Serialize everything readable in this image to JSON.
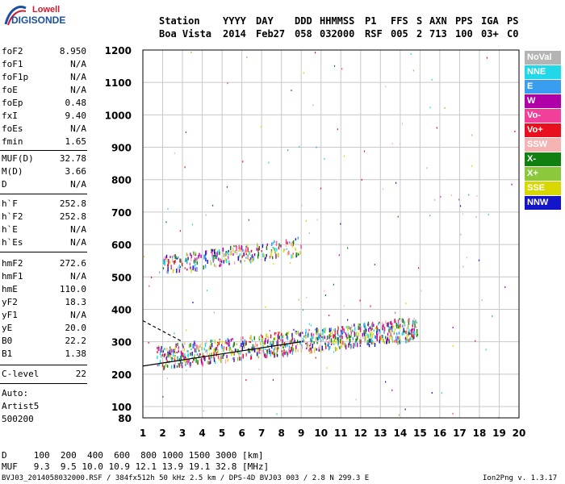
{
  "logo": {
    "line1": "Lowell",
    "line2": "DIGISONDE"
  },
  "header": {
    "labels": [
      "Station",
      "YYYY",
      "DAY",
      "DDD",
      "HHMMSS",
      "P1",
      "FFS",
      "S",
      "AXN",
      "PPS",
      "IGA",
      "PS"
    ],
    "values": [
      "Boa Vista",
      "2014",
      "Feb27",
      "058",
      "032000",
      "RSF",
      "005",
      "2",
      "713",
      "100",
      "03+",
      "C0"
    ]
  },
  "params": {
    "group1": [
      {
        "name": "foF2",
        "value": "8.950"
      },
      {
        "name": "foF1",
        "value": "N/A"
      },
      {
        "name": "foF1p",
        "value": "N/A"
      },
      {
        "name": "foE",
        "value": "N/A"
      },
      {
        "name": "foEp",
        "value": "0.48"
      },
      {
        "name": "fxI",
        "value": "9.40"
      },
      {
        "name": "foEs",
        "value": "N/A"
      },
      {
        "name": "fmin",
        "value": "1.65"
      }
    ],
    "group2": [
      {
        "name": "MUF(D)",
        "value": "32.78"
      },
      {
        "name": "M(D)",
        "value": "3.66"
      },
      {
        "name": "D",
        "value": "N/A"
      }
    ],
    "group3": [
      {
        "name": "h`F",
        "value": "252.8"
      },
      {
        "name": "h`F2",
        "value": "252.8"
      },
      {
        "name": "h`E",
        "value": "N/A"
      },
      {
        "name": "h`Es",
        "value": "N/A"
      }
    ],
    "group4": [
      {
        "name": "hmF2",
        "value": "272.6"
      },
      {
        "name": "hmF1",
        "value": "N/A"
      },
      {
        "name": "hmE",
        "value": "110.0"
      },
      {
        "name": "yF2",
        "value": "18.3"
      },
      {
        "name": "yF1",
        "value": "N/A"
      },
      {
        "name": "yE",
        "value": "20.0"
      },
      {
        "name": "B0",
        "value": "22.2"
      },
      {
        "name": "B1",
        "value": "1.38"
      }
    ],
    "group5": [
      {
        "name": "C-level",
        "value": "22"
      }
    ]
  },
  "auto": {
    "line1": "Auto:",
    "line2": "Artist5",
    "line3": "500200"
  },
  "bottom": {
    "d_line": "D     100  200  400  600  800 1000 1500 3000 [km]",
    "muf_line": "MUF   9.3  9.5 10.0 10.9 12.1 13.9 19.1 32.8 [MHz]"
  },
  "footer": {
    "left": "BVJ03_2014058032000.RSF / 384fx512h 50 kHz 2.5 km / DPS-4D BVJ03 003 / 2.8 N 299.3 E",
    "right": "Ion2Png v. 1.3.17"
  },
  "legend": [
    {
      "label": "NoVal",
      "color": "#b4b4b4"
    },
    {
      "label": "NNE",
      "color": "#22d8e8"
    },
    {
      "label": "E",
      "color": "#3a9ef0"
    },
    {
      "label": "W",
      "color": "#b000a8"
    },
    {
      "label": "Vo-",
      "color": "#f0409a"
    },
    {
      "label": "Vo+",
      "color": "#e8101e"
    },
    {
      "label": "SSW",
      "color": "#f5b4b4"
    },
    {
      "label": "X-",
      "color": "#108010"
    },
    {
      "label": "X+",
      "color": "#8cc83c"
    },
    {
      "label": "SSE",
      "color": "#d8d800"
    },
    {
      "label": "NNW",
      "color": "#1414c8"
    }
  ],
  "chart_data": {
    "type": "scatter",
    "x_ticks": [
      1,
      2,
      3,
      4,
      5,
      6,
      7,
      8,
      9,
      10,
      11,
      12,
      13,
      14,
      15,
      16,
      17,
      18,
      19,
      20
    ],
    "y_ticks": [
      80,
      100,
      200,
      300,
      400,
      500,
      600,
      700,
      800,
      900,
      1000,
      1100,
      1200
    ],
    "xlim": [
      1,
      20
    ],
    "ylim": [
      80,
      1200
    ],
    "grid": true,
    "traces": [
      {
        "name": "F2 trace",
        "x_range": [
          1.7,
          14.9
        ],
        "h_start": 255,
        "h_end": 345
      },
      {
        "name": "2F2 trace",
        "x_range": [
          2.0,
          9.0
        ],
        "h_start": 540,
        "h_end": 600
      }
    ],
    "profile_lines": {
      "solid": [
        [
          1.0,
          225
        ],
        [
          9.0,
          300
        ]
      ],
      "dashed": [
        [
          1.0,
          365
        ],
        [
          3.0,
          300
        ]
      ]
    }
  }
}
